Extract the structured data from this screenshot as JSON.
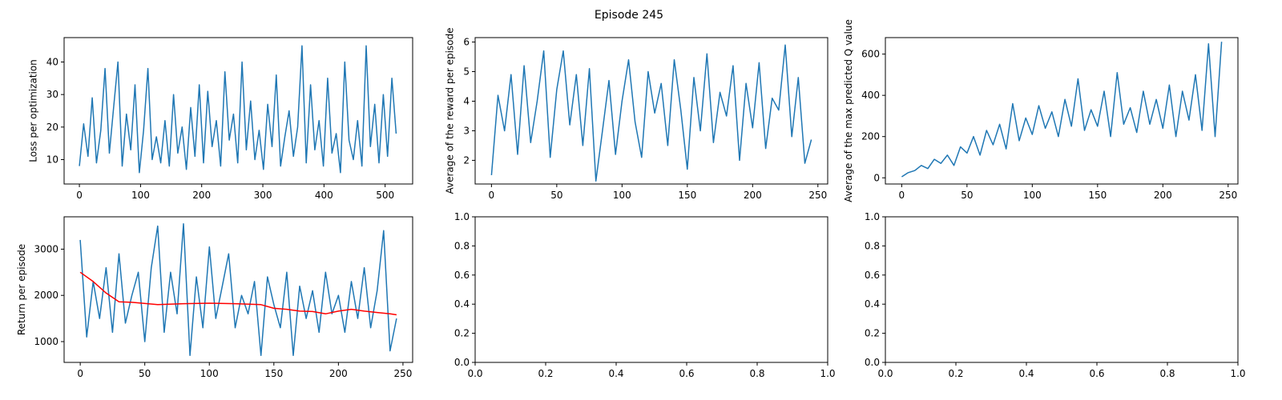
{
  "figure": {
    "suptitle": "Episode 245"
  },
  "colors": {
    "series": "#1f77b4",
    "smoothed": "#ff0000",
    "axes": "#000000"
  },
  "chart_data": [
    {
      "type": "line",
      "ylabel": "Loss per optimization",
      "xlim": [
        -25,
        545
      ],
      "ylim": [
        2.5,
        47.5
      ],
      "xticks": [
        0,
        100,
        200,
        300,
        400,
        500
      ],
      "yticks": [
        10,
        20,
        30,
        40
      ],
      "series": [
        {
          "role": "raw",
          "x": [
            0,
            7,
            14,
            21,
            28,
            35,
            42,
            49,
            56,
            63,
            70,
            77,
            84,
            91,
            98,
            105,
            112,
            119,
            126,
            133,
            140,
            147,
            154,
            161,
            168,
            175,
            182,
            189,
            196,
            203,
            210,
            217,
            224,
            231,
            238,
            245,
            252,
            259,
            266,
            273,
            280,
            287,
            294,
            301,
            308,
            315,
            322,
            329,
            336,
            343,
            350,
            357,
            364,
            371,
            378,
            385,
            392,
            399,
            406,
            413,
            420,
            427,
            434,
            441,
            448,
            455,
            462,
            469,
            476,
            483,
            490,
            497,
            504,
            511,
            518
          ],
          "y": [
            8,
            21,
            11,
            29,
            9,
            19,
            38,
            12,
            26,
            40,
            8,
            24,
            13,
            33,
            6,
            19,
            38,
            10,
            17,
            9,
            22,
            8,
            30,
            12,
            20,
            7,
            26,
            11,
            33,
            9,
            31,
            14,
            22,
            8,
            37,
            16,
            24,
            9,
            40,
            13,
            28,
            10,
            19,
            7,
            27,
            14,
            36,
            8,
            17,
            25,
            11,
            20,
            45,
            9,
            33,
            13,
            22,
            8,
            35,
            12,
            18,
            6,
            40,
            16,
            10,
            22,
            8,
            45,
            14,
            27,
            9,
            30,
            11,
            35,
            18
          ]
        }
      ]
    },
    {
      "type": "line",
      "ylabel": "Average of the reward per episode",
      "xlim": [
        -12.5,
        257.5
      ],
      "ylim": [
        1.2,
        6.15
      ],
      "xticks": [
        0,
        50,
        100,
        150,
        200,
        250
      ],
      "yticks": [
        2,
        3,
        4,
        5,
        6
      ],
      "series": [
        {
          "role": "raw",
          "x": [
            0,
            5,
            10,
            15,
            20,
            25,
            30,
            35,
            40,
            45,
            50,
            55,
            60,
            65,
            70,
            75,
            80,
            85,
            90,
            95,
            100,
            105,
            110,
            115,
            120,
            125,
            130,
            135,
            140,
            145,
            150,
            155,
            160,
            165,
            170,
            175,
            180,
            185,
            190,
            195,
            200,
            205,
            210,
            215,
            220,
            225,
            230,
            235,
            240,
            245
          ],
          "y": [
            1.5,
            4.2,
            3.0,
            4.9,
            2.2,
            5.2,
            2.6,
            4.0,
            5.7,
            2.1,
            4.4,
            5.7,
            3.2,
            4.9,
            2.5,
            5.1,
            1.3,
            3.0,
            4.7,
            2.2,
            4.0,
            5.4,
            3.3,
            2.1,
            5.0,
            3.6,
            4.6,
            2.5,
            5.4,
            3.7,
            1.7,
            4.8,
            3.0,
            5.6,
            2.6,
            4.3,
            3.5,
            5.2,
            2.0,
            4.6,
            3.1,
            5.3,
            2.4,
            4.1,
            3.7,
            5.9,
            2.8,
            4.8,
            1.9,
            2.7
          ]
        }
      ]
    },
    {
      "type": "line",
      "ylabel": "Average of the max predicted Q value",
      "xlim": [
        -12.5,
        257.5
      ],
      "ylim": [
        -30,
        680
      ],
      "xticks": [
        0,
        50,
        100,
        150,
        200,
        250
      ],
      "yticks": [
        0,
        200,
        400,
        600
      ],
      "series": [
        {
          "role": "raw",
          "x": [
            0,
            5,
            10,
            15,
            20,
            25,
            30,
            35,
            40,
            45,
            50,
            55,
            60,
            65,
            70,
            75,
            80,
            85,
            90,
            95,
            100,
            105,
            110,
            115,
            120,
            125,
            130,
            135,
            140,
            145,
            150,
            155,
            160,
            165,
            170,
            175,
            180,
            185,
            190,
            195,
            200,
            205,
            210,
            215,
            220,
            225,
            230,
            235,
            240,
            245
          ],
          "y": [
            5,
            25,
            35,
            60,
            45,
            90,
            70,
            110,
            60,
            150,
            120,
            200,
            110,
            230,
            160,
            260,
            140,
            360,
            180,
            290,
            210,
            350,
            240,
            320,
            200,
            380,
            250,
            480,
            230,
            330,
            250,
            420,
            200,
            510,
            260,
            340,
            220,
            420,
            260,
            380,
            240,
            450,
            200,
            420,
            280,
            500,
            230,
            650,
            200,
            660
          ]
        }
      ]
    },
    {
      "type": "line",
      "ylabel": "Return per episode",
      "xlim": [
        -12.5,
        257.5
      ],
      "ylim": [
        550,
        3700
      ],
      "xticks": [
        0,
        50,
        100,
        150,
        200,
        250
      ],
      "yticks": [
        1000,
        2000,
        3000
      ],
      "series": [
        {
          "role": "raw",
          "x": [
            0,
            5,
            10,
            15,
            20,
            25,
            30,
            35,
            40,
            45,
            50,
            55,
            60,
            65,
            70,
            75,
            80,
            85,
            90,
            95,
            100,
            105,
            110,
            115,
            120,
            125,
            130,
            135,
            140,
            145,
            150,
            155,
            160,
            165,
            170,
            175,
            180,
            185,
            190,
            195,
            200,
            205,
            210,
            215,
            220,
            225,
            230,
            235,
            240,
            245
          ],
          "y": [
            3200,
            1100,
            2300,
            1500,
            2600,
            1200,
            2900,
            1400,
            2000,
            2500,
            1000,
            2600,
            3500,
            1200,
            2500,
            1600,
            3550,
            700,
            2400,
            1300,
            3050,
            1500,
            2200,
            2900,
            1300,
            2000,
            1600,
            2300,
            700,
            2400,
            1800,
            1300,
            2500,
            700,
            2200,
            1500,
            2100,
            1200,
            2500,
            1600,
            2000,
            1200,
            2300,
            1500,
            2600,
            1300,
            2100,
            3400,
            800,
            1500
          ]
        },
        {
          "role": "smoothed",
          "x": [
            0,
            10,
            20,
            30,
            40,
            60,
            80,
            100,
            120,
            140,
            150,
            160,
            170,
            180,
            190,
            200,
            210,
            220,
            230,
            240,
            245
          ],
          "y": [
            2500,
            2300,
            2050,
            1860,
            1850,
            1800,
            1820,
            1830,
            1820,
            1800,
            1720,
            1700,
            1660,
            1650,
            1600,
            1660,
            1700,
            1660,
            1630,
            1600,
            1580
          ]
        }
      ]
    },
    {
      "type": "line",
      "xlim": [
        0,
        1
      ],
      "ylim": [
        0,
        1
      ],
      "xticks": [
        0.0,
        0.2,
        0.4,
        0.6,
        0.8,
        1.0
      ],
      "yticks": [
        0.0,
        0.2,
        0.4,
        0.6,
        0.8,
        1.0
      ],
      "series": []
    },
    {
      "type": "line",
      "xlim": [
        0,
        1
      ],
      "ylim": [
        0,
        1
      ],
      "xticks": [
        0.0,
        0.2,
        0.4,
        0.6,
        0.8,
        1.0
      ],
      "yticks": [
        0.0,
        0.2,
        0.4,
        0.6,
        0.8,
        1.0
      ],
      "series": []
    }
  ]
}
